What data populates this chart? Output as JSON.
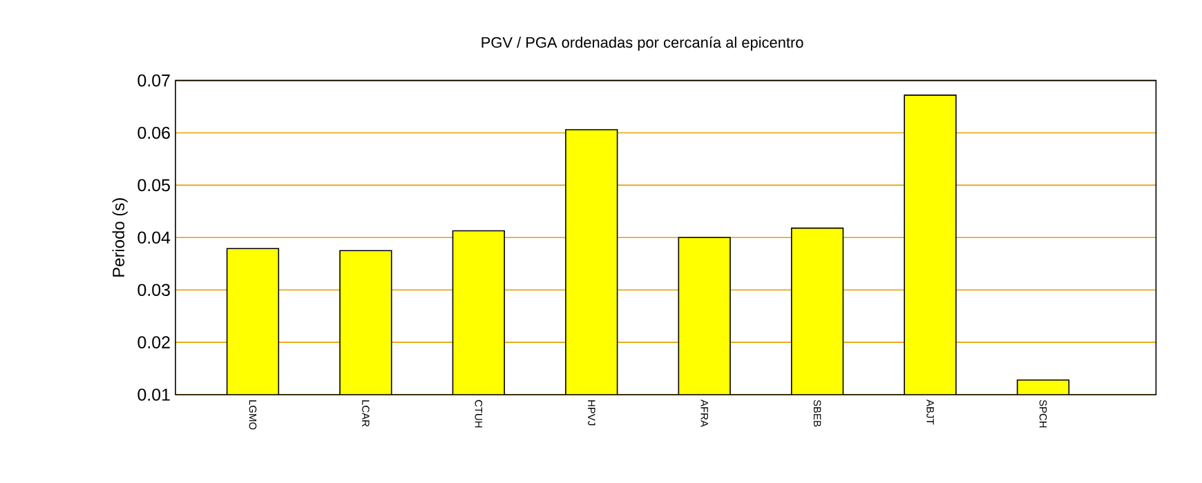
{
  "chart_data": {
    "type": "bar",
    "title": "PGV / PGA ordenadas por cercanía al epicentro",
    "ylabel": "Periodo (s)",
    "categories": [
      "LGMO",
      "LCAR",
      "CTUH",
      "HPVJ",
      "AFRA",
      "SBEB",
      "ABJT",
      "SPCH"
    ],
    "values": [
      0.0379,
      0.0375,
      0.0413,
      0.0606,
      0.04,
      0.0418,
      0.0672,
      0.0128
    ],
    "color": "#ffff00",
    "ylim": [
      0.01,
      0.07
    ],
    "yticks": [
      0.01,
      0.02,
      0.03,
      0.04,
      0.05,
      0.06,
      0.07
    ],
    "grid": "y"
  }
}
